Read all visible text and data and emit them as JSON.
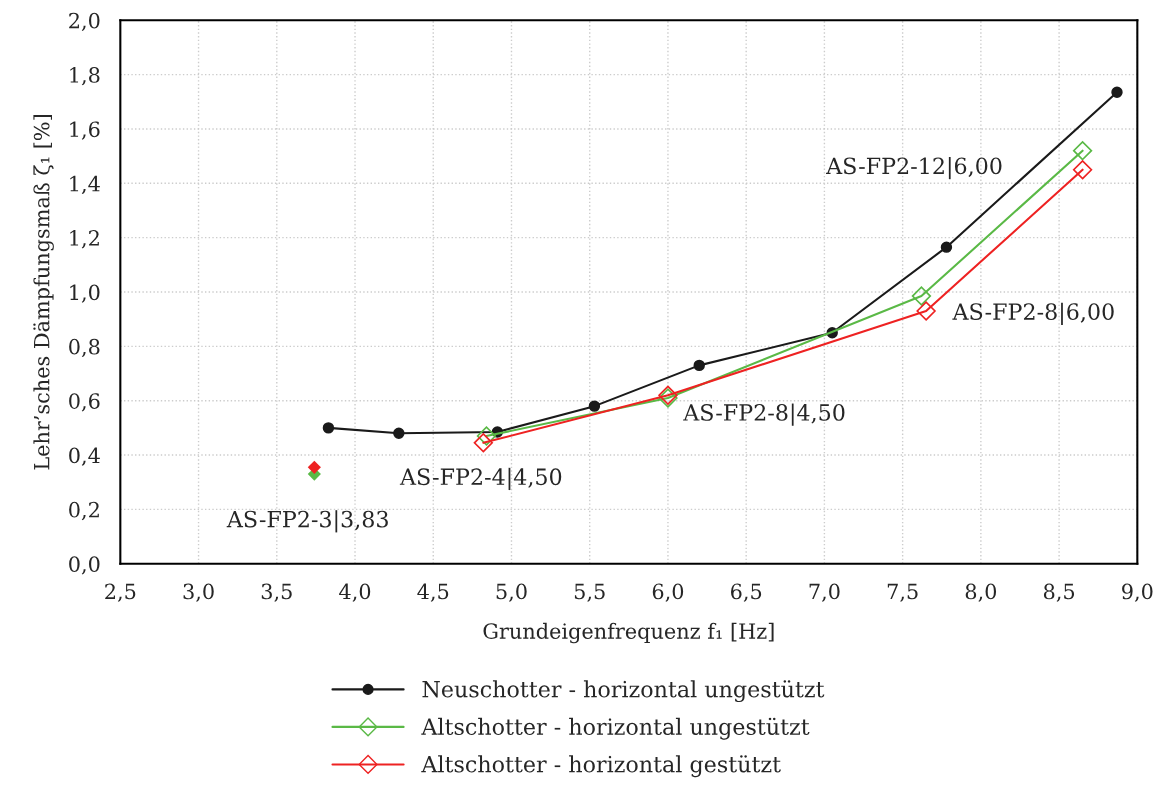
{
  "chart_data": {
    "type": "line",
    "xlabel": "Grundeigenfrequenz f₁ [Hz]",
    "ylabel": "Lehr’sches Dämpfungsmaß ζ₁ [%]",
    "series": [
      {
        "name": "Neuschotter - horizontal ungestützt",
        "color": "#1a1a1a",
        "marker": "circle",
        "x": [
          3.83,
          4.28,
          4.91,
          5.53,
          6.2,
          7.05,
          7.78,
          8.87
        ],
        "values": [
          0.5,
          0.48,
          0.485,
          0.58,
          0.73,
          0.85,
          1.165,
          1.735
        ]
      },
      {
        "name": "Altschotter - horizontal ungestützt",
        "color": "#5ab946",
        "marker": "diamond",
        "x": [
          4.84,
          6.0,
          7.62,
          8.65
        ],
        "values": [
          0.47,
          0.61,
          0.985,
          1.52
        ]
      },
      {
        "name": "Altschotter - horizontal gestützt",
        "color": "#ee2222",
        "marker": "diamond",
        "x": [
          4.82,
          6.0,
          7.65,
          8.65
        ],
        "values": [
          0.445,
          0.62,
          0.93,
          1.45
        ]
      },
      {
        "type": "scatter",
        "color": "#5ab946",
        "marker": "diamond",
        "x": [
          3.74
        ],
        "values": [
          0.33
        ]
      },
      {
        "type": "scatter",
        "color": "#ee2222",
        "marker": "diamond",
        "x": [
          3.74
        ],
        "values": [
          0.355
        ]
      }
    ],
    "xlim": [
      2.5,
      9.0
    ],
    "xticks": [
      {
        "value": 2.5,
        "label": "2,5"
      },
      {
        "value": 3.0,
        "label": "3,0"
      },
      {
        "value": 3.5,
        "label": "3,5"
      },
      {
        "value": 4.0,
        "label": "4,0"
      },
      {
        "value": 4.5,
        "label": "4,5"
      },
      {
        "value": 5.0,
        "label": "5,0"
      },
      {
        "value": 5.5,
        "label": "5,5"
      },
      {
        "value": 6.0,
        "label": "6,0"
      },
      {
        "value": 6.5,
        "label": "6,5"
      },
      {
        "value": 7.0,
        "label": "7,0"
      },
      {
        "value": 7.5,
        "label": "7,5"
      },
      {
        "value": 8.0,
        "label": "8,0"
      },
      {
        "value": 8.5,
        "label": "8,5"
      },
      {
        "value": 9.0,
        "label": "9,0"
      }
    ],
    "ylim": [
      0,
      2.0
    ],
    "yticks": [
      {
        "value": 0,
        "label": "0,0"
      },
      {
        "value": 0.2,
        "label": "0,2"
      },
      {
        "value": 0.4,
        "label": "0,4"
      },
      {
        "value": 0.6,
        "label": "0,6"
      },
      {
        "value": 0.8,
        "label": "0,8"
      },
      {
        "value": 1.0,
        "label": "1,0"
      },
      {
        "value": 1.2,
        "label": "1,2"
      },
      {
        "value": 1.4,
        "label": "1,4"
      },
      {
        "value": 1.6,
        "label": "1,6"
      },
      {
        "value": 1.8,
        "label": "1,8"
      },
      {
        "value": 2.0,
        "label": "2,0"
      }
    ],
    "annotations": [
      {
        "text": "AS-FP2-3|3,83",
        "x": 3.74,
        "y": 0.33
      },
      {
        "text": "AS-FP2-4|4,50",
        "x": 4.82,
        "y": 0.445
      },
      {
        "text": "AS-FP2-8|4,50",
        "x": 6.0,
        "y": 0.61
      },
      {
        "text": "AS-FP2-8|6,00",
        "x": 7.65,
        "y": 0.93
      },
      "AS-FP2-12|6,00"
    ],
    "grid": true,
    "legend": "bottom",
    "line_style": "solid"
  }
}
